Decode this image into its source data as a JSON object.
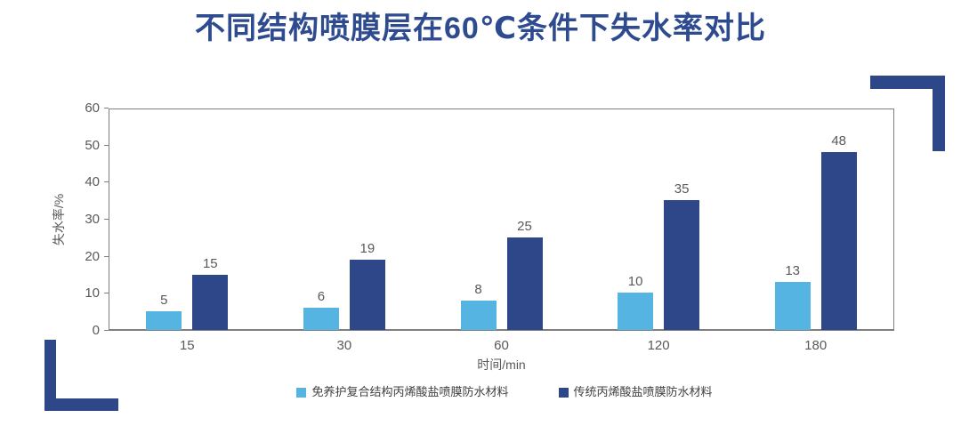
{
  "title": "不同结构喷膜层在60℃条件下失水率对比",
  "chart_data": {
    "type": "bar",
    "categories": [
      "15",
      "30",
      "60",
      "120",
      "180"
    ],
    "series": [
      {
        "name": "免养护复合结构丙烯酸盐喷膜防水材料",
        "color": "#55b4e1",
        "values": [
          5,
          6,
          8,
          10,
          13
        ]
      },
      {
        "name": "传统丙烯酸盐喷膜防水材料",
        "color": "#2e4789",
        "values": [
          15,
          19,
          25,
          35,
          48
        ]
      }
    ],
    "xlabel": "时间/min",
    "ylabel": "失水率/%",
    "ylim": [
      0,
      60
    ],
    "yticks": [
      0,
      10,
      20,
      30,
      40,
      50,
      60
    ],
    "grid": false,
    "legend_position": "bottom",
    "data_labels": true
  },
  "colors": {
    "title": "#2e4b8f",
    "accent": "#2e4789",
    "axis_line": "#7f7f7f",
    "axis_text": "#595959",
    "legend_text": "#404040"
  }
}
